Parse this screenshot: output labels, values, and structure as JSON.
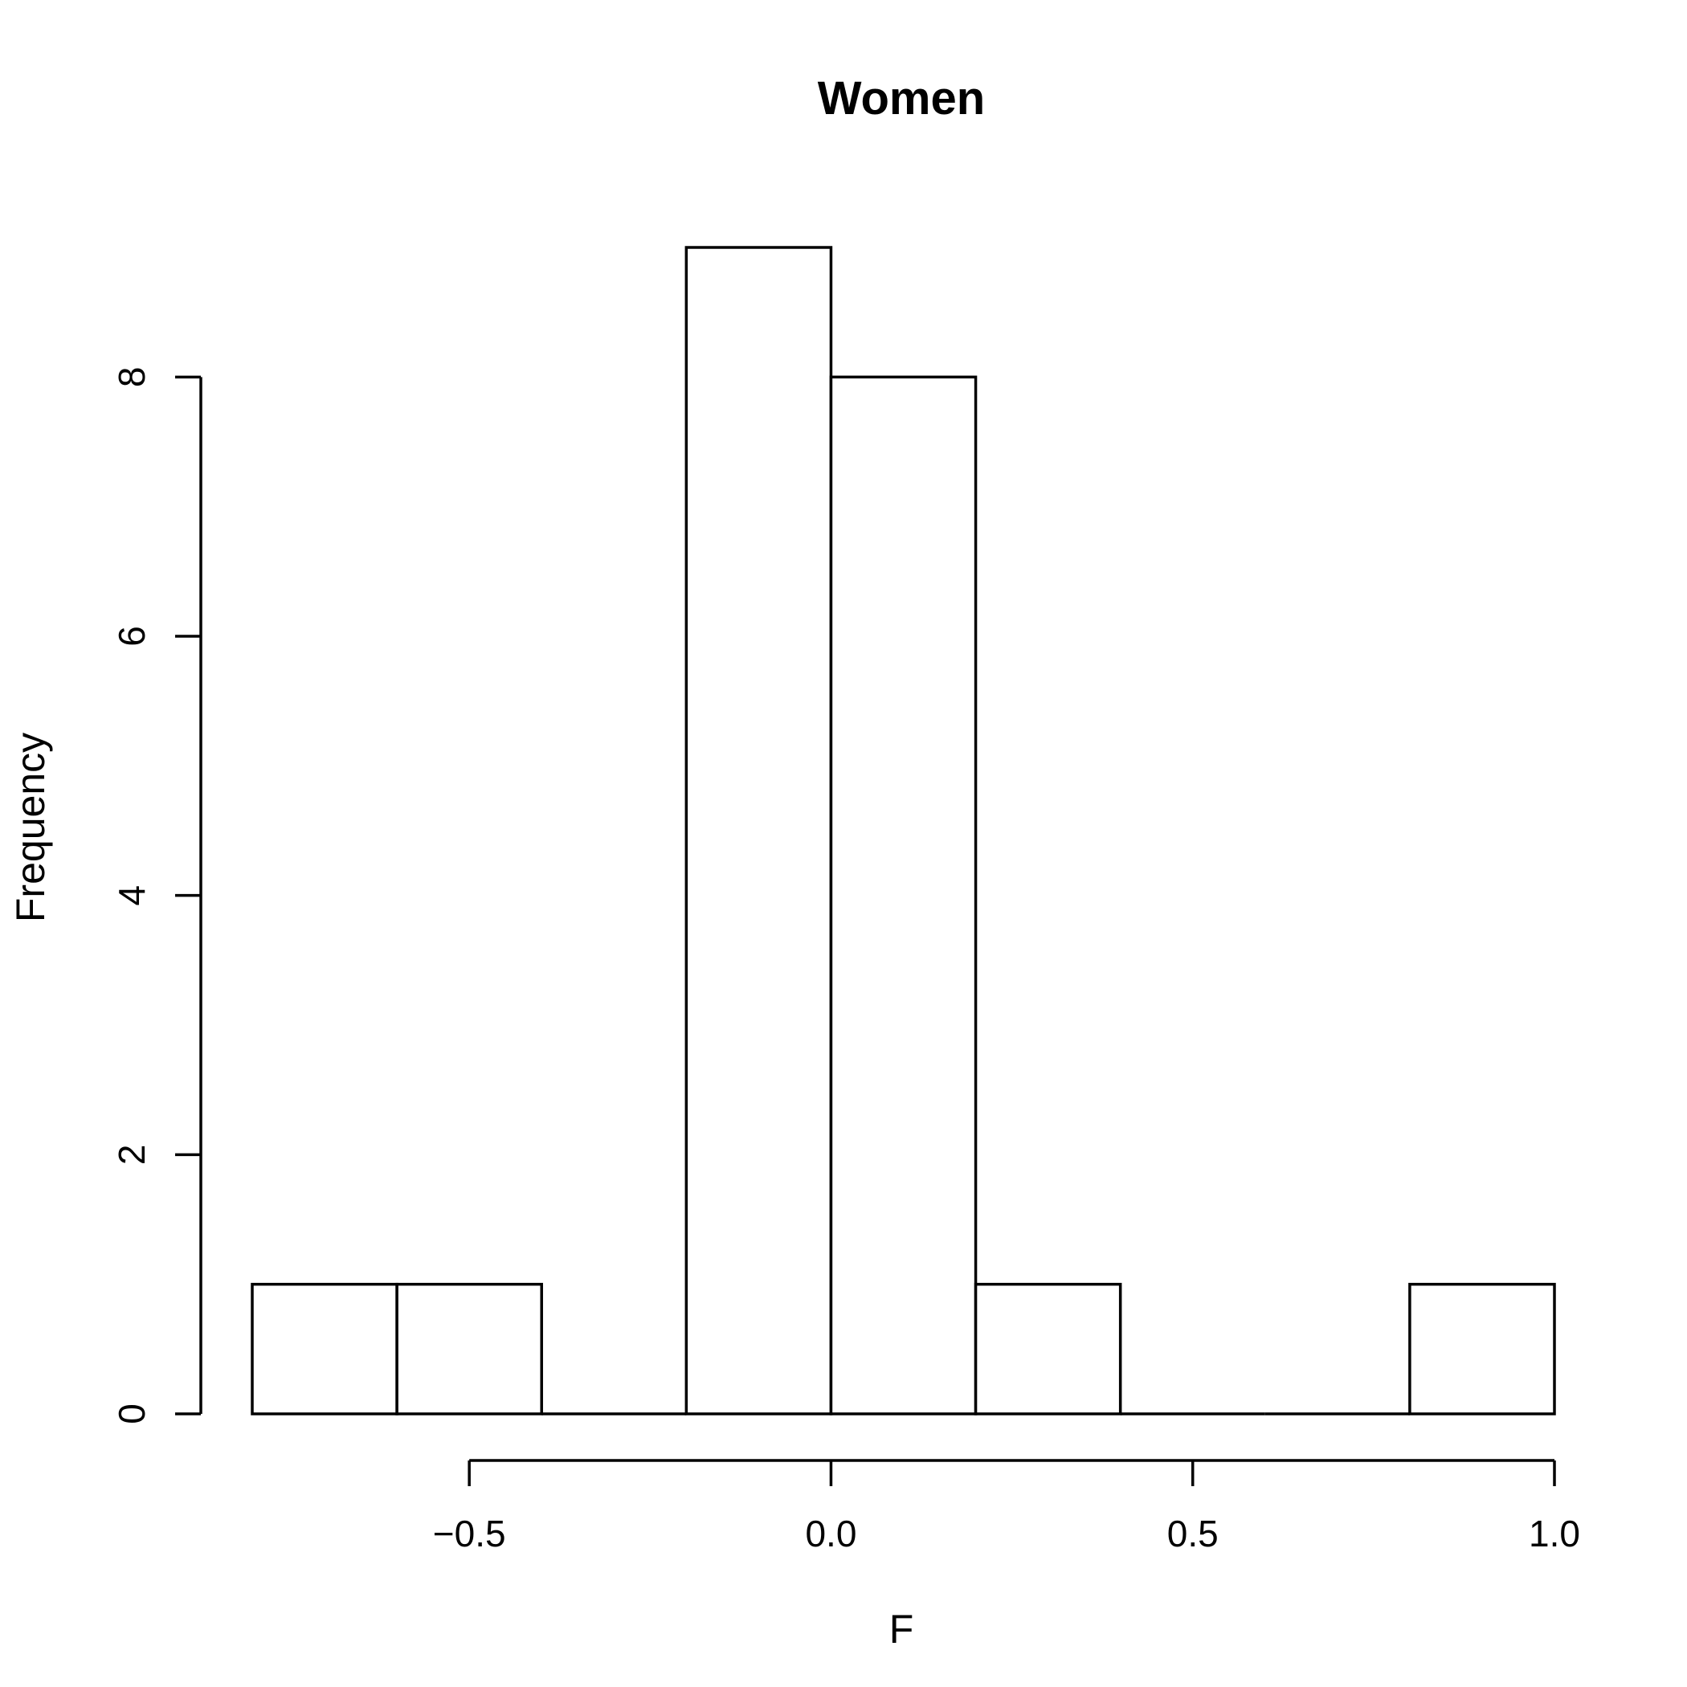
{
  "chart_data": {
    "type": "bar",
    "title": "Women",
    "xlabel": "F",
    "ylabel": "Frequency",
    "bins": [
      {
        "start": -0.8,
        "end": -0.6,
        "count": 1
      },
      {
        "start": -0.6,
        "end": -0.4,
        "count": 1
      },
      {
        "start": -0.4,
        "end": -0.2,
        "count": 0
      },
      {
        "start": -0.2,
        "end": 0.0,
        "count": 9
      },
      {
        "start": 0.0,
        "end": 0.2,
        "count": 8
      },
      {
        "start": 0.2,
        "end": 0.4,
        "count": 1
      },
      {
        "start": 0.4,
        "end": 0.6,
        "count": 0
      },
      {
        "start": 0.6,
        "end": 0.8,
        "count": 0
      },
      {
        "start": 0.8,
        "end": 1.0,
        "count": 1
      }
    ],
    "xlim": [
      -0.8,
      1.0
    ],
    "ylim": [
      0,
      9
    ],
    "x_ticks": [
      {
        "value": -0.5,
        "label": "−0.5"
      },
      {
        "value": 0.0,
        "label": "0.0"
      },
      {
        "value": 0.5,
        "label": "0.5"
      },
      {
        "value": 1.0,
        "label": "1.0"
      }
    ],
    "y_ticks": [
      {
        "value": 0,
        "label": "0"
      },
      {
        "value": 2,
        "label": "2"
      },
      {
        "value": 4,
        "label": "4"
      },
      {
        "value": 6,
        "label": "6"
      },
      {
        "value": 8,
        "label": "8"
      }
    ],
    "grid": false,
    "legend": "none"
  }
}
